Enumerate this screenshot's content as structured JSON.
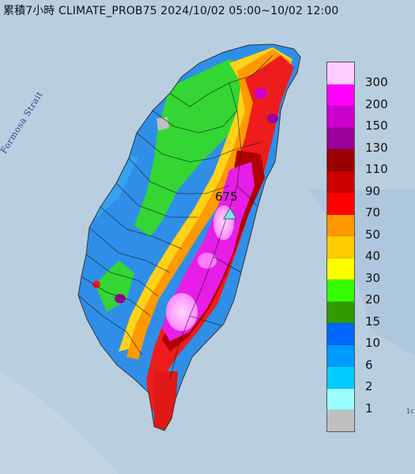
{
  "header": {
    "title": "累積7小時 CLIMATE_PROB75 2024/10/02 05:00~10/02 12:00"
  },
  "map": {
    "strait_label": "Formosa Strait",
    "peak_value": "675",
    "corner_text": "1c",
    "sea_color": "#b9cfe0",
    "peak_marker": "triangle-marker"
  },
  "legend": {
    "items": [
      {
        "label": "300",
        "color": "#ffccff"
      },
      {
        "label": "200",
        "color": "#ff00ff"
      },
      {
        "label": "150",
        "color": "#cc00cc"
      },
      {
        "label": "130",
        "color": "#990099"
      },
      {
        "label": "110",
        "color": "#990000"
      },
      {
        "label": "90",
        "color": "#cc0000"
      },
      {
        "label": "70",
        "color": "#ff0000"
      },
      {
        "label": "50",
        "color": "#ff9900"
      },
      {
        "label": "40",
        "color": "#ffcc00"
      },
      {
        "label": "30",
        "color": "#ffff00"
      },
      {
        "label": "20",
        "color": "#33ff00"
      },
      {
        "label": "15",
        "color": "#339900"
      },
      {
        "label": "10",
        "color": "#0066ff"
      },
      {
        "label": "6",
        "color": "#0099ff"
      },
      {
        "label": "2",
        "color": "#00ccff"
      },
      {
        "label": "1",
        "color": "#99ffff"
      },
      {
        "label": "",
        "color": "#c0c0c0"
      }
    ]
  }
}
